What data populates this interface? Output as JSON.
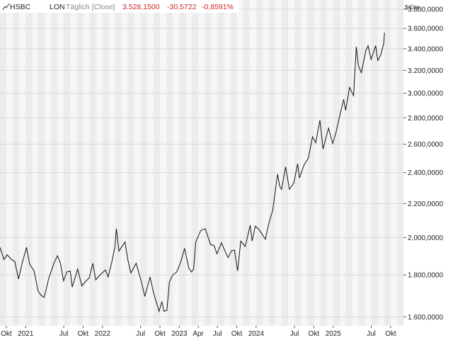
{
  "header": {
    "symbol": "HSBC",
    "exchange": "LON",
    "interval": "Täglich [Close]",
    "last": "3.528,1500",
    "change": "-30,5722",
    "change_pct": "-0,8591%"
  },
  "colors": {
    "negative": "#cc2222",
    "line": "#111111",
    "band_dark": "#ececec",
    "band_light": "#f6f6f6",
    "grid": "#d8d8d8",
    "muted": "#8a8a8a"
  },
  "icons": {
    "chart": "mini-line-chart-icon"
  },
  "chart_data": {
    "type": "line",
    "ylabel": "$/Ozs",
    "y_scale": "log",
    "ylim": [
      1560,
      3900
    ],
    "grid": true,
    "y_ticks": [
      {
        "value": 1600,
        "label": "1.600,0000"
      },
      {
        "value": 1800,
        "label": "1.800,0000"
      },
      {
        "value": 2000,
        "label": "2.000,0000"
      },
      {
        "value": 2200,
        "label": "2.200,0000"
      },
      {
        "value": 2400,
        "label": "2.400,0000"
      },
      {
        "value": 2600,
        "label": "2.600,0000"
      },
      {
        "value": 2800,
        "label": "2.800,0000"
      },
      {
        "value": 3000,
        "label": "3.000,0000"
      },
      {
        "value": 3200,
        "label": "3.200,0000"
      },
      {
        "value": 3400,
        "label": "3.400,0000"
      },
      {
        "value": 3600,
        "label": "3.600,0000"
      },
      {
        "value": 3800,
        "label": "3.800,0000"
      }
    ],
    "xlim": [
      "2020-09-01",
      "2025-12-01"
    ],
    "x_ticks": [
      {
        "date": "2020-10-01",
        "label": "Okt"
      },
      {
        "date": "2021-01-01",
        "label": "2021"
      },
      {
        "date": "2021-07-01",
        "label": "Jul"
      },
      {
        "date": "2021-10-01",
        "label": "Okt"
      },
      {
        "date": "2022-01-01",
        "label": "2022"
      },
      {
        "date": "2022-07-01",
        "label": "Jul"
      },
      {
        "date": "2022-10-01",
        "label": "Okt"
      },
      {
        "date": "2023-01-01",
        "label": "2023"
      },
      {
        "date": "2023-04-01",
        "label": "Apr"
      },
      {
        "date": "2023-07-01",
        "label": "Jul"
      },
      {
        "date": "2023-10-01",
        "label": "Okt"
      },
      {
        "date": "2024-01-01",
        "label": "2024"
      },
      {
        "date": "2024-07-01",
        "label": "Jul"
      },
      {
        "date": "2024-10-01",
        "label": "Okt"
      },
      {
        "date": "2025-01-01",
        "label": "2025"
      },
      {
        "date": "2025-07-01",
        "label": "Jul"
      },
      {
        "date": "2025-10-01",
        "label": "Okt"
      }
    ],
    "series": [
      {
        "points": [
          [
            "2020-09-01",
            1945
          ],
          [
            "2020-09-20",
            1880
          ],
          [
            "2020-10-05",
            1905
          ],
          [
            "2020-10-25",
            1880
          ],
          [
            "2020-11-10",
            1870
          ],
          [
            "2020-11-28",
            1780
          ],
          [
            "2020-12-15",
            1860
          ],
          [
            "2021-01-05",
            1945
          ],
          [
            "2021-01-20",
            1855
          ],
          [
            "2021-02-10",
            1820
          ],
          [
            "2021-03-01",
            1720
          ],
          [
            "2021-03-15",
            1700
          ],
          [
            "2021-03-30",
            1690
          ],
          [
            "2021-04-20",
            1780
          ],
          [
            "2021-05-15",
            1860
          ],
          [
            "2021-06-01",
            1900
          ],
          [
            "2021-06-15",
            1860
          ],
          [
            "2021-06-30",
            1770
          ],
          [
            "2021-07-15",
            1815
          ],
          [
            "2021-08-01",
            1820
          ],
          [
            "2021-08-10",
            1740
          ],
          [
            "2021-08-25",
            1790
          ],
          [
            "2021-09-05",
            1830
          ],
          [
            "2021-09-25",
            1745
          ],
          [
            "2021-10-10",
            1765
          ],
          [
            "2021-10-30",
            1785
          ],
          [
            "2021-11-16",
            1860
          ],
          [
            "2021-11-30",
            1775
          ],
          [
            "2021-12-20",
            1800
          ],
          [
            "2022-01-15",
            1825
          ],
          [
            "2022-01-28",
            1790
          ],
          [
            "2022-02-15",
            1870
          ],
          [
            "2022-03-01",
            1950
          ],
          [
            "2022-03-08",
            2050
          ],
          [
            "2022-03-20",
            1925
          ],
          [
            "2022-04-18",
            1975
          ],
          [
            "2022-05-01",
            1880
          ],
          [
            "2022-05-16",
            1810
          ],
          [
            "2022-06-10",
            1860
          ],
          [
            "2022-07-05",
            1765
          ],
          [
            "2022-07-21",
            1695
          ],
          [
            "2022-08-15",
            1790
          ],
          [
            "2022-09-01",
            1710
          ],
          [
            "2022-09-27",
            1625
          ],
          [
            "2022-10-10",
            1670
          ],
          [
            "2022-10-20",
            1625
          ],
          [
            "2022-11-03",
            1630
          ],
          [
            "2022-11-15",
            1765
          ],
          [
            "2022-12-01",
            1800
          ],
          [
            "2022-12-20",
            1815
          ],
          [
            "2023-01-10",
            1875
          ],
          [
            "2023-01-26",
            1940
          ],
          [
            "2023-02-15",
            1835
          ],
          [
            "2023-02-28",
            1815
          ],
          [
            "2023-03-10",
            1830
          ],
          [
            "2023-03-20",
            1975
          ],
          [
            "2023-04-13",
            2040
          ],
          [
            "2023-05-04",
            2050
          ],
          [
            "2023-05-30",
            1960
          ],
          [
            "2023-06-15",
            1955
          ],
          [
            "2023-06-29",
            1910
          ],
          [
            "2023-07-20",
            1970
          ],
          [
            "2023-08-10",
            1915
          ],
          [
            "2023-08-21",
            1890
          ],
          [
            "2023-09-05",
            1925
          ],
          [
            "2023-09-20",
            1930
          ],
          [
            "2023-10-05",
            1820
          ],
          [
            "2023-10-20",
            1980
          ],
          [
            "2023-11-10",
            1950
          ],
          [
            "2023-12-04",
            2070
          ],
          [
            "2023-12-13",
            1980
          ],
          [
            "2023-12-28",
            2065
          ],
          [
            "2024-01-15",
            2045
          ],
          [
            "2024-02-14",
            1990
          ],
          [
            "2024-03-01",
            2080
          ],
          [
            "2024-03-20",
            2160
          ],
          [
            "2024-04-12",
            2390
          ],
          [
            "2024-04-22",
            2310
          ],
          [
            "2024-05-01",
            2290
          ],
          [
            "2024-05-20",
            2440
          ],
          [
            "2024-06-07",
            2290
          ],
          [
            "2024-06-28",
            2330
          ],
          [
            "2024-07-16",
            2460
          ],
          [
            "2024-07-25",
            2365
          ],
          [
            "2024-08-15",
            2450
          ],
          [
            "2024-09-05",
            2500
          ],
          [
            "2024-09-25",
            2655
          ],
          [
            "2024-10-10",
            2610
          ],
          [
            "2024-10-30",
            2780
          ],
          [
            "2024-11-14",
            2565
          ],
          [
            "2024-11-25",
            2630
          ],
          [
            "2024-12-10",
            2720
          ],
          [
            "2024-12-30",
            2605
          ],
          [
            "2025-01-15",
            2690
          ],
          [
            "2025-01-30",
            2800
          ],
          [
            "2025-02-20",
            2950
          ],
          [
            "2025-03-01",
            2860
          ],
          [
            "2025-03-20",
            3050
          ],
          [
            "2025-04-08",
            2980
          ],
          [
            "2025-04-21",
            3420
          ],
          [
            "2025-05-01",
            3240
          ],
          [
            "2025-05-15",
            3180
          ],
          [
            "2025-06-05",
            3380
          ],
          [
            "2025-06-16",
            3430
          ],
          [
            "2025-06-30",
            3300
          ],
          [
            "2025-07-22",
            3430
          ],
          [
            "2025-08-01",
            3290
          ],
          [
            "2025-08-15",
            3340
          ],
          [
            "2025-08-29",
            3450
          ],
          [
            "2025-09-02",
            3558
          ]
        ]
      }
    ]
  }
}
